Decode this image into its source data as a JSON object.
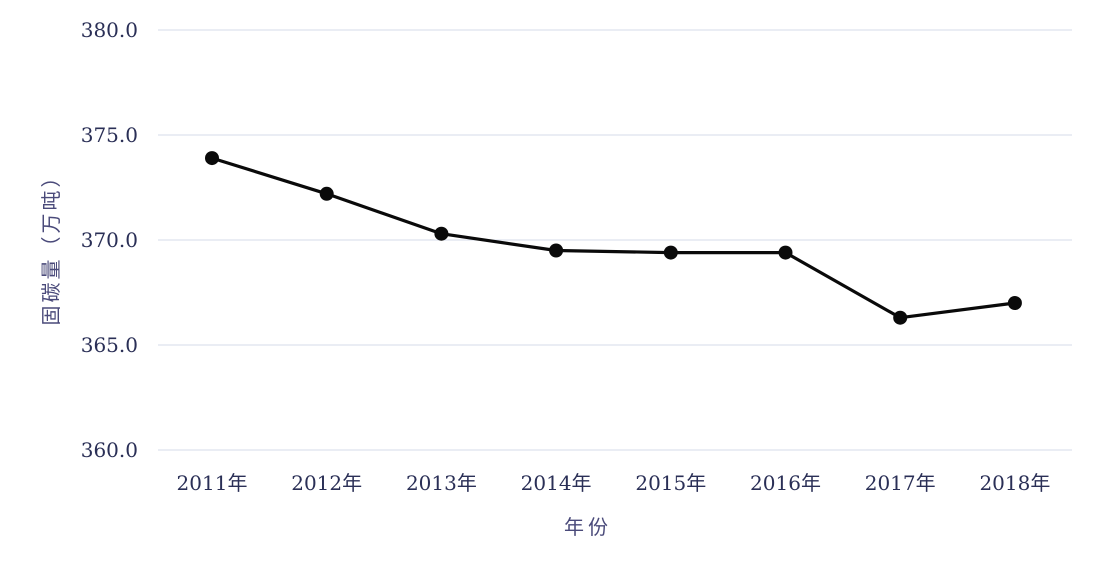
{
  "chart_data": {
    "type": "line",
    "title": "",
    "xlabel": "年份",
    "ylabel": "固碳量（万吨）",
    "categories": [
      "2011年",
      "2012年",
      "2013年",
      "2014年",
      "2015年",
      "2016年",
      "2017年",
      "2018年"
    ],
    "series": [
      {
        "values": [
          373.9,
          372.2,
          370.3,
          369.5,
          369.4,
          369.4,
          366.3,
          367.0
        ]
      }
    ],
    "ylim": [
      360,
      380
    ],
    "yticks": [
      "360.0",
      "365.0",
      "370.0",
      "375.0",
      "380.0"
    ],
    "grid": true,
    "legend": "none",
    "colors": {
      "line": "#0a0a0a",
      "grid": "#d4dbe8",
      "text": "#2a2f56"
    }
  }
}
